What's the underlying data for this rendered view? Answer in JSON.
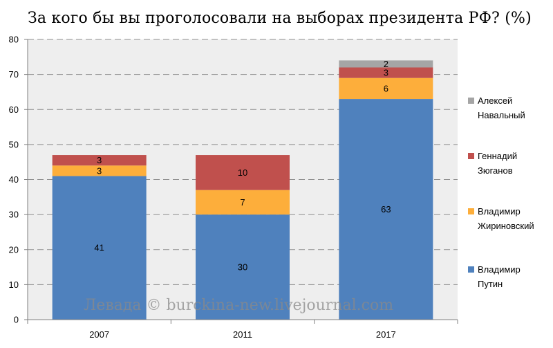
{
  "title": "За кого бы вы проголосовали на выборах президента РФ? (%)",
  "watermark": "Левада © burckina-new.livejournal.com",
  "chart_data": {
    "type": "bar",
    "stacked": true,
    "categories": [
      "2007",
      "2011",
      "2017"
    ],
    "ylim": [
      0,
      80
    ],
    "yticks": [
      0,
      10,
      20,
      30,
      40,
      50,
      60,
      70,
      80
    ],
    "grid": true,
    "legend_position": "right",
    "series": [
      {
        "name": "Владимир Путин",
        "name_lines": [
          "Владимир",
          "Путин"
        ],
        "color": "#4f81bd",
        "values": [
          41,
          30,
          63
        ]
      },
      {
        "name": "Владимир Жириновский",
        "name_lines": [
          "Владимир",
          "Жириновский"
        ],
        "color": "#fdae3b",
        "values": [
          3,
          7,
          6
        ]
      },
      {
        "name": "Геннадий Зюганов",
        "name_lines": [
          "Геннадий",
          "Зюганов"
        ],
        "color": "#c0504d",
        "values": [
          3,
          10,
          3
        ]
      },
      {
        "name": "Алексей Навальный",
        "name_lines": [
          "Алексей",
          "Навальный"
        ],
        "color": "#a5a5a5",
        "values": [
          null,
          null,
          2
        ]
      }
    ]
  }
}
